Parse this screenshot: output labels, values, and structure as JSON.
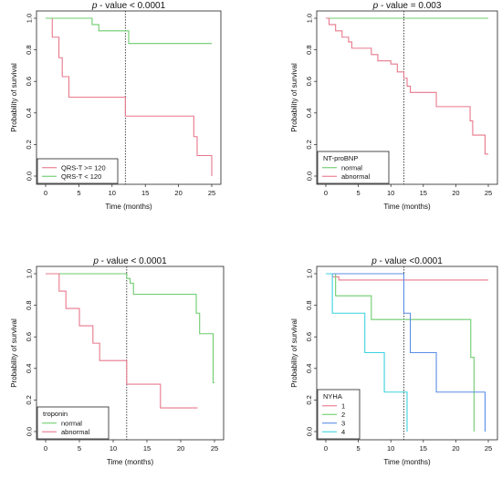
{
  "chart_data": [
    {
      "type": "line",
      "title_p": "p",
      "title_rest": " - value < 0.0001",
      "xlabel": "Time (months)",
      "ylabel": "Probability of survival",
      "xlim": [
        0,
        25
      ],
      "ylim": [
        0,
        1
      ],
      "xticks": [
        "0",
        "5",
        "10",
        "15",
        "20",
        "25"
      ],
      "yticks": [
        "0.0",
        "0.2",
        "0.4",
        "0.6",
        "0.8",
        "1.0"
      ],
      "vline": 12,
      "legend_position": "bottom-left",
      "legend_title": "",
      "series": [
        {
          "name": "QRS-T >= 120",
          "color": "#e8788c",
          "x": [
            0,
            1,
            2,
            2.5,
            3.5,
            5,
            12,
            22.3,
            22.8,
            23.5,
            25
          ],
          "y": [
            1,
            0.88,
            0.75,
            0.63,
            0.5,
            0.5,
            0.38,
            0.25,
            0.13,
            0.13,
            0
          ]
        },
        {
          "name": "QRS-T < 120",
          "color": "#6dcc6d",
          "x": [
            0,
            7,
            8,
            12.5,
            25
          ],
          "y": [
            1,
            0.96,
            0.92,
            0.84,
            0.84
          ]
        }
      ]
    },
    {
      "type": "line",
      "title_p": "p",
      "title_rest": " - value = 0.003",
      "xlabel": "Time (months)",
      "ylabel": "Probability of survival",
      "xlim": [
        0,
        25
      ],
      "ylim": [
        0,
        1
      ],
      "xticks": [
        "0",
        "5",
        "10",
        "15",
        "20",
        "25"
      ],
      "yticks": [
        "0.0",
        "0.2",
        "0.4",
        "0.6",
        "0.8",
        "1.0"
      ],
      "vline": 12,
      "legend_position": "bottom-left",
      "legend_title": "NT-proBNP",
      "series": [
        {
          "name": "normal",
          "color": "#6dcc6d",
          "x": [
            0,
            25
          ],
          "y": [
            1,
            1
          ]
        },
        {
          "name": "abnormal",
          "color": "#e8788c",
          "x": [
            0,
            0.5,
            1.5,
            2.5,
            3.5,
            4,
            5,
            7,
            8,
            10,
            11,
            12,
            12.5,
            13,
            17,
            22.2,
            22.6,
            24.5,
            25
          ],
          "y": [
            1,
            0.96,
            0.92,
            0.88,
            0.85,
            0.81,
            0.81,
            0.77,
            0.73,
            0.71,
            0.66,
            0.62,
            0.57,
            0.53,
            0.44,
            0.35,
            0.26,
            0.14,
            0.14
          ]
        }
      ]
    },
    {
      "type": "line",
      "title_p": "p",
      "title_rest": " - value < 0.0001",
      "xlabel": "Time (months)",
      "ylabel": "Probability of survival",
      "xlim": [
        0,
        25
      ],
      "ylim": [
        0,
        1
      ],
      "xticks": [
        "0",
        "5",
        "10",
        "15",
        "20",
        "25"
      ],
      "yticks": [
        "0.0",
        "0.2",
        "0.4",
        "0.6",
        "0.8",
        "1.0"
      ],
      "vline": 12,
      "legend_position": "bottom-left",
      "legend_title": "troponin",
      "series": [
        {
          "name": "normal",
          "color": "#6dcc6d",
          "x": [
            0,
            12,
            12.5,
            13,
            22.3,
            22.8,
            24.8,
            25
          ],
          "y": [
            1,
            0.97,
            0.94,
            0.87,
            0.75,
            0.62,
            0.31,
            0.31
          ]
        },
        {
          "name": "abnormal",
          "color": "#e8788c",
          "x": [
            0,
            2,
            3,
            5,
            7,
            8,
            12,
            17,
            22.5
          ],
          "y": [
            1,
            0.89,
            0.78,
            0.67,
            0.56,
            0.45,
            0.3,
            0.15,
            0.15
          ]
        }
      ]
    },
    {
      "type": "line",
      "title_p": "p",
      "title_rest": " - value <0.0001",
      "xlabel": "Time (months)",
      "ylabel": "Probability of survival",
      "xlim": [
        0,
        25
      ],
      "ylim": [
        0,
        1
      ],
      "xticks": [
        "0",
        "5",
        "10",
        "15",
        "20",
        "25"
      ],
      "yticks": [
        "0.0",
        "0.2",
        "0.4",
        "0.6",
        "0.8",
        "1.0"
      ],
      "vline": 12,
      "legend_position": "bottom-left",
      "legend_title": "NYHA",
      "series": [
        {
          "name": "1",
          "color": "#e8788c",
          "x": [
            0,
            1,
            2,
            25
          ],
          "y": [
            1,
            0.98,
            0.96,
            0.96
          ]
        },
        {
          "name": "2",
          "color": "#6dcc6d",
          "x": [
            0,
            1.5,
            3.5,
            7,
            22.3,
            22.8
          ],
          "y": [
            1,
            0.86,
            0.86,
            0.71,
            0.47,
            0
          ]
        },
        {
          "name": "3",
          "color": "#5b8ee6",
          "x": [
            0,
            12,
            13,
            17,
            21,
            24.5
          ],
          "y": [
            1,
            0.75,
            0.5,
            0.25,
            0.25,
            0
          ]
        },
        {
          "name": "4",
          "color": "#3dd2e0",
          "x": [
            0,
            0.5,
            1,
            3.5,
            6,
            9,
            12,
            12.5
          ],
          "y": [
            1,
            1,
            0.75,
            0.75,
            0.5,
            0.25,
            0.25,
            0
          ]
        }
      ]
    }
  ]
}
